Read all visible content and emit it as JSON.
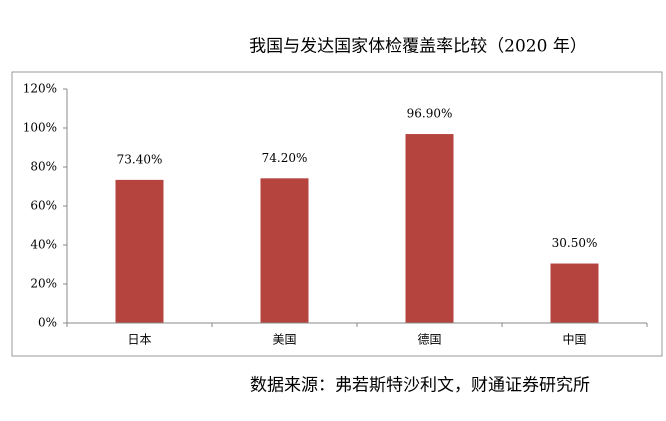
{
  "chart_data": {
    "type": "bar",
    "title": "我国与发达国家体检覆盖率比较（2020 年）",
    "source": "数据来源：弗若斯特沙利文，财通证券研究所",
    "categories": [
      "日本",
      "美国",
      "德国",
      "中国"
    ],
    "values": [
      73.4,
      74.2,
      96.9,
      30.5
    ],
    "value_labels": [
      "73.40%",
      "74.20%",
      "96.90%",
      "30.50%"
    ],
    "color": "#b5443f",
    "ylim": [
      0,
      120
    ],
    "yticks": [
      {
        "value": 0,
        "label": "0%"
      },
      {
        "value": 20,
        "label": "20%"
      },
      {
        "value": 40,
        "label": "40%"
      },
      {
        "value": 60,
        "label": "60%"
      },
      {
        "value": 80,
        "label": "80%"
      },
      {
        "value": 100,
        "label": "100%"
      },
      {
        "value": 120,
        "label": "120%"
      }
    ],
    "grid": false
  }
}
